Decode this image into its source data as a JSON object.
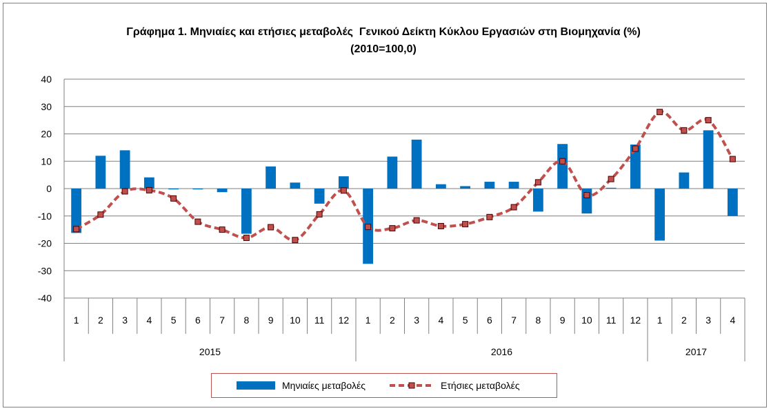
{
  "title": {
    "line1": "Γράφημα 1. Μηνιαίες και ετήσιες μεταβολές  Γενικού Δείκτη Κύκλου Εργασιών στη Βιομηχανία (%)",
    "line2": "(2010=100,0)"
  },
  "colors": {
    "bar": "#0070c0",
    "line": "#c0504d",
    "marker_fill": "#c0504d",
    "marker_stroke": "#4d0000",
    "grid": "#7f7f7f"
  },
  "legend": {
    "monthly_label": "Μηνιαίες μεταβολές",
    "annual_label": "Ετήσιες μεταβολές",
    "placement": "bottom"
  },
  "chart_data": {
    "type": "bar",
    "title": "Γράφημα 1. Μηνιαίες και ετήσιες μεταβολές  Γενικού Δείκτη Κύκλου Εργασιών στη Βιομηχανία (%) (2010=100,0)",
    "categories": [
      "1",
      "2",
      "3",
      "4",
      "5",
      "6",
      "7",
      "8",
      "9",
      "10",
      "11",
      "12",
      "1",
      "2",
      "3",
      "4",
      "5",
      "6",
      "7",
      "8",
      "9",
      "10",
      "11",
      "12",
      "1",
      "2",
      "3",
      "4"
    ],
    "year_groups": [
      {
        "label": "2015",
        "count": 12
      },
      {
        "label": "2016",
        "count": 12
      },
      {
        "label": "2017",
        "count": 4
      }
    ],
    "ylim": [
      -40,
      40
    ],
    "yticks": [
      -40,
      -30,
      -20,
      -10,
      0,
      10,
      20,
      30,
      40
    ],
    "grid": true,
    "series": [
      {
        "name": "Μηνιαίες μεταβολές",
        "type": "bar",
        "values": [
          -16.2,
          12.0,
          14.0,
          4.1,
          -0.3,
          -0.3,
          -1.3,
          -16.5,
          8.1,
          2.2,
          -5.5,
          4.5,
          -27.5,
          11.7,
          17.9,
          1.6,
          0.9,
          2.5,
          2.5,
          -8.4,
          16.3,
          -9.1,
          0.3,
          16.1,
          -19.0,
          5.9,
          21.3,
          -10.0
        ]
      },
      {
        "name": "Ετήσιες μεταβολές",
        "type": "line",
        "values": [
          -14.8,
          -9.5,
          -1.0,
          -0.6,
          -3.6,
          -12.1,
          -15.0,
          -18.0,
          -14.1,
          -18.8,
          -9.4,
          -0.7,
          -14.0,
          -14.5,
          -11.6,
          -13.7,
          -13.0,
          -10.4,
          -6.8,
          2.3,
          10.0,
          -2.4,
          3.5,
          14.6,
          28.0,
          21.3,
          25.0,
          10.8
        ]
      }
    ]
  }
}
